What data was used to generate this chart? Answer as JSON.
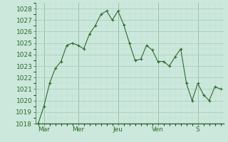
{
  "x_labels": [
    "Mar",
    "Mer",
    "Jeu",
    "Ven",
    "S"
  ],
  "ylim": [
    1018,
    1028.5
  ],
  "yticks": [
    1018,
    1019,
    1020,
    1021,
    1022,
    1023,
    1024,
    1025,
    1026,
    1027,
    1028
  ],
  "y_values": [
    1018.0,
    1019.5,
    1021.5,
    1022.8,
    1023.4,
    1024.8,
    1025.0,
    1024.8,
    1024.5,
    1025.8,
    1026.5,
    1027.5,
    1027.8,
    1027.0,
    1027.8,
    1026.6,
    1025.0,
    1023.5,
    1023.6,
    1024.8,
    1024.4,
    1023.4,
    1023.4,
    1023.0,
    1023.8,
    1024.5,
    1021.5,
    1020.0,
    1021.5,
    1020.5,
    1020.0,
    1021.2,
    1021.0
  ],
  "day_tick_positions": [
    1,
    7,
    14,
    21,
    28
  ],
  "line_color": "#2d6a2d",
  "marker_color": "#2d6a2d",
  "bg_color": "#cce8dc",
  "grid_color_major": "#aacfbb",
  "grid_color_minor": "#bcdece",
  "axis_color": "#2d6a2d",
  "tick_label_color": "#2d6a2d",
  "font_size": 6.5
}
